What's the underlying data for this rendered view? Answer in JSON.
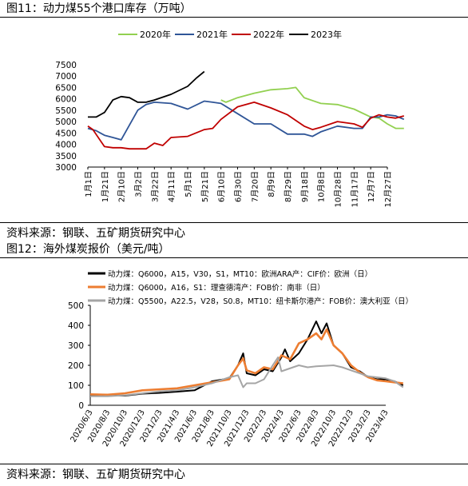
{
  "figure1": {
    "title": "图11：动力煤55个港口库存（万吨）",
    "source": "资料来源：钢联、五矿期货研究中心"
  },
  "figure2": {
    "title": "图12：海外煤炭报价（美元/吨）",
    "source": "资料来源：钢联、五矿期货研究中心"
  },
  "chart_data": [
    {
      "type": "line",
      "title": "图11：动力煤55个港口库存（万吨）",
      "ylim": [
        3000,
        7500
      ],
      "yticks": [
        3000,
        3500,
        4000,
        4500,
        5000,
        5500,
        6000,
        6500,
        7000,
        7500
      ],
      "x": [
        "1月1日",
        "1月21日",
        "2月10日",
        "3月2日",
        "3月22日",
        "4月11日",
        "5月1日",
        "5月21日",
        "6月10日",
        "6月30日",
        "7月20日",
        "8月9日",
        "8月29日",
        "9月18日",
        "10月8日",
        "10月28日",
        "11月17日",
        "12月7日",
        "12月27日"
      ],
      "legend": "top",
      "grid": false,
      "series": [
        {
          "name": "2020年",
          "color": "#92D050",
          "points": [
            [
              8,
              5950
            ],
            [
              8.3,
              5850
            ],
            [
              9,
              6050
            ],
            [
              10,
              6250
            ],
            [
              11,
              6400
            ],
            [
              12,
              6450
            ],
            [
              12.5,
              6500
            ],
            [
              13,
              6050
            ],
            [
              14,
              5800
            ],
            [
              15,
              5750
            ],
            [
              16,
              5550
            ],
            [
              17,
              5200
            ],
            [
              17.5,
              5150
            ],
            [
              18,
              4900
            ],
            [
              18.5,
              4700
            ],
            [
              19,
              4700
            ]
          ]
        },
        {
          "name": "2021年",
          "color": "#2F5597",
          "points": [
            [
              0,
              4700
            ],
            [
              0.5,
              4600
            ],
            [
              1,
              4400
            ],
            [
              1.5,
              4300
            ],
            [
              2,
              4200
            ],
            [
              3,
              5500
            ],
            [
              3.5,
              5750
            ],
            [
              4,
              5850
            ],
            [
              5,
              5800
            ],
            [
              6,
              5550
            ],
            [
              7,
              5900
            ],
            [
              7.5,
              5850
            ],
            [
              8,
              5800
            ],
            [
              9,
              5350
            ],
            [
              10,
              4900
            ],
            [
              11,
              4900
            ],
            [
              12,
              4450
            ],
            [
              13,
              4450
            ],
            [
              13.5,
              4350
            ],
            [
              14,
              4550
            ],
            [
              15,
              4800
            ],
            [
              16,
              4700
            ],
            [
              16.5,
              4700
            ],
            [
              17,
              5200
            ],
            [
              17.5,
              5200
            ],
            [
              18,
              5300
            ],
            [
              18.5,
              5250
            ],
            [
              19,
              5100
            ]
          ]
        },
        {
          "name": "2022年",
          "color": "#C00000",
          "points": [
            [
              0,
              4800
            ],
            [
              0.3,
              4650
            ],
            [
              1,
              3900
            ],
            [
              1.5,
              3850
            ],
            [
              2,
              3850
            ],
            [
              2.5,
              3800
            ],
            [
              3,
              3800
            ],
            [
              3.5,
              3800
            ],
            [
              4,
              4050
            ],
            [
              4.5,
              3950
            ],
            [
              5,
              4300
            ],
            [
              6,
              4350
            ],
            [
              7,
              4650
            ],
            [
              7.5,
              4700
            ],
            [
              8,
              5100
            ],
            [
              9,
              5650
            ],
            [
              10,
              5850
            ],
            [
              11,
              5600
            ],
            [
              12,
              5300
            ],
            [
              13,
              4800
            ],
            [
              13.5,
              4650
            ],
            [
              14,
              4750
            ],
            [
              15,
              5000
            ],
            [
              16,
              4900
            ],
            [
              16.5,
              4750
            ],
            [
              17,
              5150
            ],
            [
              17.5,
              5300
            ],
            [
              18,
              5200
            ],
            [
              18.5,
              5150
            ],
            [
              19,
              5250
            ]
          ]
        },
        {
          "name": "2023年",
          "color": "#000000",
          "points": [
            [
              0,
              5200
            ],
            [
              0.5,
              5200
            ],
            [
              1,
              5400
            ],
            [
              1.5,
              5950
            ],
            [
              2,
              6100
            ],
            [
              2.5,
              6050
            ],
            [
              3,
              5850
            ],
            [
              3.5,
              5850
            ],
            [
              4,
              5950
            ],
            [
              5,
              6200
            ],
            [
              6,
              6550
            ],
            [
              6.5,
              6900
            ],
            [
              7,
              7200
            ]
          ]
        }
      ]
    },
    {
      "type": "line",
      "title": "图12：海外煤炭报价（美元/吨）",
      "ylim": [
        0,
        500
      ],
      "yticks": [
        0,
        100,
        200,
        300,
        400,
        500
      ],
      "x": [
        "2020/6/3",
        "2020/8/3",
        "2020/10/3",
        "2020/12/3",
        "2021/2/3",
        "2021/4/3",
        "2021/6/3",
        "2021/8/3",
        "2021/10/3",
        "2021/12/3",
        "2022/2/3",
        "2022/4/3",
        "2022/6/3",
        "2022/8/3",
        "2022/10/3",
        "2022/12/3",
        "2023/2/3",
        "2023/4/3"
      ],
      "legend": "top",
      "grid": false,
      "series": [
        {
          "name": "动力煤：Q6000，A15，V30，S1，MT10：欧洲ARA产：CIF价：欧洲（日）",
          "color": "#000000",
          "points": [
            [
              0,
              52
            ],
            [
              1,
              50
            ],
            [
              2,
              48
            ],
            [
              3,
              58
            ],
            [
              4,
              62
            ],
            [
              5,
              68
            ],
            [
              6,
              75
            ],
            [
              7,
              120
            ],
            [
              8,
              135
            ],
            [
              8.5,
              200
            ],
            [
              8.8,
              260
            ],
            [
              9,
              160
            ],
            [
              9.5,
              150
            ],
            [
              10,
              180
            ],
            [
              10.5,
              170
            ],
            [
              11,
              240
            ],
            [
              11.2,
              280
            ],
            [
              11.5,
              220
            ],
            [
              12,
              260
            ],
            [
              12.5,
              330
            ],
            [
              13,
              420
            ],
            [
              13.3,
              360
            ],
            [
              13.6,
              410
            ],
            [
              14,
              300
            ],
            [
              14.5,
              260
            ],
            [
              15,
              190
            ],
            [
              15.5,
              170
            ],
            [
              16,
              140
            ],
            [
              16.5,
              130
            ],
            [
              17,
              130
            ],
            [
              17.5,
              120
            ],
            [
              18,
              100
            ]
          ]
        },
        {
          "name": "动力煤：Q6000，A16，S1：理查德湾产：FOB价：南非（日）",
          "color": "#ED7D31",
          "points": [
            [
              0,
              55
            ],
            [
              1,
              53
            ],
            [
              2,
              60
            ],
            [
              3,
              75
            ],
            [
              4,
              80
            ],
            [
              5,
              85
            ],
            [
              6,
              100
            ],
            [
              7,
              115
            ],
            [
              8,
              130
            ],
            [
              8.5,
              200
            ],
            [
              8.8,
              235
            ],
            [
              9,
              175
            ],
            [
              9.5,
              160
            ],
            [
              10,
              190
            ],
            [
              10.5,
              180
            ],
            [
              11,
              250
            ],
            [
              11.5,
              230
            ],
            [
              12,
              310
            ],
            [
              12.5,
              330
            ],
            [
              13,
              360
            ],
            [
              13.3,
              330
            ],
            [
              13.6,
              380
            ],
            [
              14,
              300
            ],
            [
              14.5,
              260
            ],
            [
              15,
              200
            ],
            [
              15.5,
              165
            ],
            [
              16,
              140
            ],
            [
              16.5,
              125
            ],
            [
              17,
              120
            ],
            [
              17.5,
              115
            ],
            [
              18,
              110
            ]
          ]
        },
        {
          "name": "动力煤：Q5500，A22.5，V28，S0.8，MT10：纽卡斯尔港产：FOB价：澳大利亚（日）",
          "color": "#A5A5A5",
          "points": [
            [
              0,
              45
            ],
            [
              1,
              45
            ],
            [
              2,
              50
            ],
            [
              3,
              60
            ],
            [
              4,
              70
            ],
            [
              5,
              75
            ],
            [
              6,
              90
            ],
            [
              7,
              110
            ],
            [
              8,
              140
            ],
            [
              8.5,
              150
            ],
            [
              8.8,
              90
            ],
            [
              9,
              110
            ],
            [
              9.5,
              110
            ],
            [
              10,
              130
            ],
            [
              10.5,
              200
            ],
            [
              10.8,
              240
            ],
            [
              11,
              170
            ],
            [
              12,
              200
            ],
            [
              12.5,
              190
            ],
            [
              13,
              195
            ],
            [
              14,
              200
            ],
            [
              14.5,
              190
            ],
            [
              15,
              175
            ],
            [
              15.5,
              160
            ],
            [
              16,
              145
            ],
            [
              16.5,
              140
            ],
            [
              17,
              135
            ],
            [
              17.5,
              120
            ],
            [
              18,
              90
            ]
          ]
        }
      ]
    }
  ]
}
